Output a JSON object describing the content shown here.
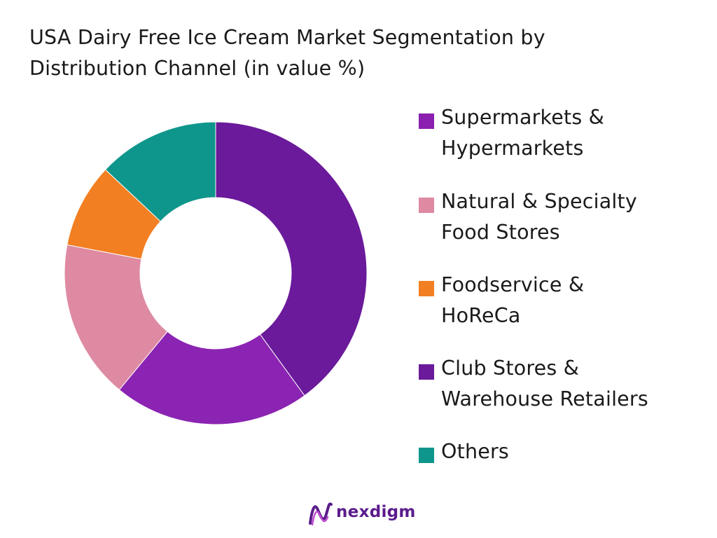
{
  "chart_data": {
    "type": "pie",
    "title_lines": [
      "USA Dairy Free Ice Cream Market Segmentation by",
      "Distribution Channel (in value %)"
    ],
    "donut": true,
    "legend_position": "right",
    "categories": [
      "Supermarkets & Hypermarkets",
      "Natural & Specialty Food Stores",
      "Foodservice & HoReCa",
      "Club Stores & Warehouse Retailers",
      "Others"
    ],
    "legend_labels": [
      "Supermarkets &\nHypermarkets",
      "Natural & Specialty\nFood Stores",
      "Foodservice &\nHoReCa",
      "Club Stores &\nWarehouse Retailers",
      "Others"
    ],
    "values": [
      40,
      17,
      9,
      21,
      13
    ],
    "slice_order_clockwise_from_top": [
      "Supermarkets & Hypermarkets",
      "Club Stores & Warehouse Retailers",
      "Natural & Specialty Food Stores",
      "Foodservice & HoReCa",
      "Others"
    ],
    "colors": {
      "Supermarkets & Hypermarkets": "#8b1faf",
      "Natural & Specialty Food Stores": "#de8aa2",
      "Foodservice & HoReCa": "#f27f22",
      "Club Stores & Warehouse Retailers": "#6a1a9a",
      "Others": "#0f968c"
    },
    "slice_colors": {
      "Supermarkets & Hypermarkets": "#6a1a9a",
      "Club Stores & Warehouse Retailers": "#8b24b2",
      "Natural & Specialty Food Stores": "#de8aa2",
      "Foodservice & HoReCa": "#f27f22",
      "Others": "#0f968c"
    }
  },
  "logo": {
    "text": "nexdigm",
    "icon": "nexdigm-wave-icon",
    "colors": [
      "#5b1c8c",
      "#c04fd0"
    ]
  }
}
